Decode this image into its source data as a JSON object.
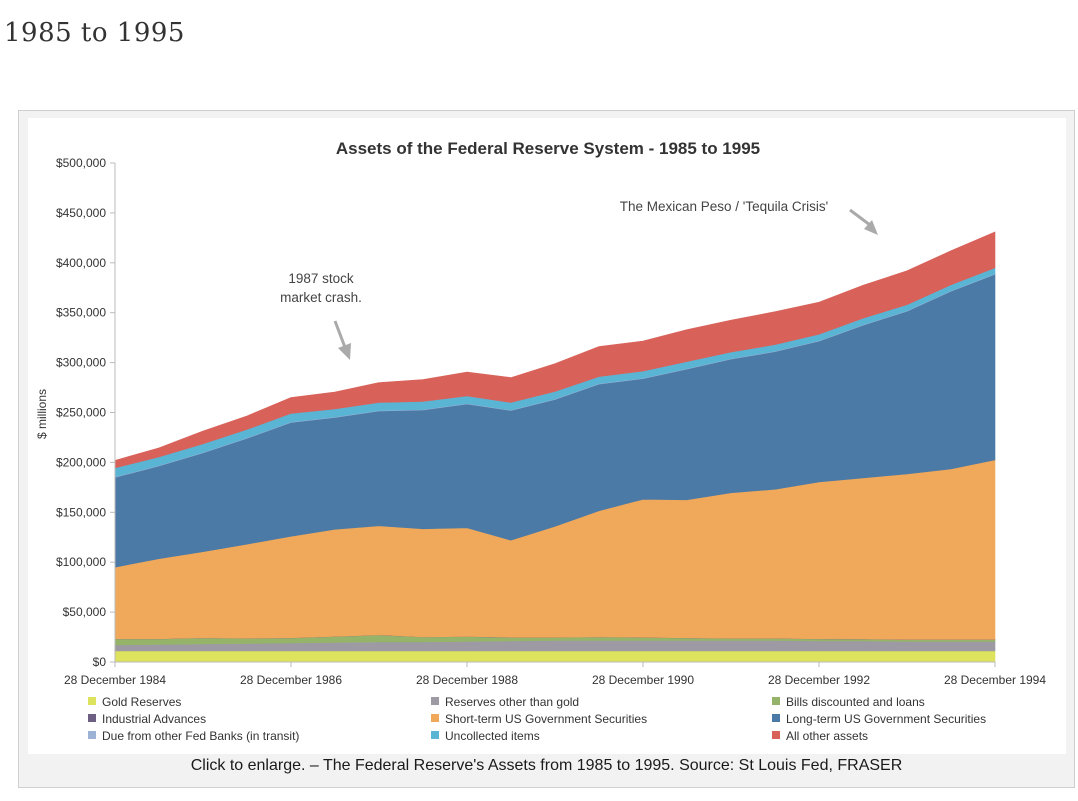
{
  "page": {
    "heading": "1985 to 1995",
    "caption": "Click to enlarge. – The Federal Reserve's Assets from 1985 to 1995. Source: St Louis Fed, FRASER"
  },
  "chart_data": {
    "type": "area",
    "stacked": true,
    "title": "Assets of the Federal Reserve System - 1985 to 1995",
    "ylabel": "$ millions",
    "xlabel": "",
    "ylim": [
      0,
      500000
    ],
    "y_ticks": [
      0,
      50000,
      100000,
      150000,
      200000,
      250000,
      300000,
      350000,
      400000,
      450000,
      500000
    ],
    "y_tick_labels": [
      "$0",
      "$50,000",
      "$100,000",
      "$150,000",
      "$200,000",
      "$250,000",
      "$300,000",
      "$350,000",
      "$400,000",
      "$450,000",
      "$500,000"
    ],
    "x_tick_labels": [
      "28 December 1984",
      "28 December 1986",
      "28 December 1988",
      "28 December 1990",
      "28 December 1992",
      "28 December 1994"
    ],
    "x_dates": [
      "1984-12-28",
      "1985-06-28",
      "1985-12-28",
      "1986-06-28",
      "1986-12-28",
      "1987-06-28",
      "1987-12-28",
      "1988-06-28",
      "1988-12-28",
      "1989-06-28",
      "1989-12-28",
      "1990-06-28",
      "1990-12-28",
      "1991-06-28",
      "1991-12-28",
      "1992-06-28",
      "1992-12-28",
      "1993-06-28",
      "1993-12-28",
      "1994-06-28",
      "1994-12-28"
    ],
    "legend_position": "bottom",
    "grid": false,
    "series": [
      {
        "name": "Gold Reserves",
        "color": "#dde35c",
        "values": [
          11000,
          11000,
          11000,
          11000,
          11000,
          11000,
          11000,
          11000,
          11000,
          11000,
          11000,
          11000,
          11000,
          11000,
          11000,
          11000,
          11000,
          11000,
          11000,
          11000,
          11000
        ]
      },
      {
        "name": "Reserves other than gold",
        "color": "#9d9aa3",
        "values": [
          6000,
          6500,
          7000,
          7500,
          8000,
          8500,
          9000,
          9000,
          9500,
          10000,
          10500,
          10500,
          10500,
          10500,
          10500,
          10500,
          10000,
          10000,
          9500,
          9500,
          9500
        ]
      },
      {
        "name": "Bills discounted and loans",
        "color": "#95b46a",
        "values": [
          6000,
          5500,
          6000,
          5000,
          5000,
          6000,
          7000,
          5000,
          5000,
          3500,
          3000,
          3500,
          3000,
          2500,
          2000,
          2000,
          2000,
          1800,
          1800,
          1800,
          1800
        ]
      },
      {
        "name": "Industrial Advances",
        "color": "#6d5e84",
        "values": [
          200,
          200,
          200,
          200,
          200,
          200,
          200,
          200,
          200,
          200,
          200,
          200,
          200,
          200,
          200,
          200,
          200,
          200,
          200,
          200,
          200
        ]
      },
      {
        "name": "Short-term US Government Securities",
        "color": "#f0a85a",
        "values": [
          71800,
          80300,
          86300,
          94300,
          101800,
          107300,
          109300,
          108300,
          108800,
          97300,
          111300,
          126300,
          138300,
          138300,
          145800,
          149300,
          157300,
          161500,
          166000,
          171000,
          180000
        ]
      },
      {
        "name": "Long-term US Government Securities",
        "color": "#4b7aa6",
        "values": [
          90000,
          93000,
          99000,
          106000,
          114000,
          112000,
          115000,
          119000,
          124000,
          130000,
          127000,
          127000,
          121000,
          131000,
          134000,
          138000,
          141000,
          153000,
          163000,
          178000,
          186000
        ]
      },
      {
        "name": "Due from other Fed Banks (in transit)",
        "color": "#9db3d6",
        "values": [
          500,
          500,
          500,
          500,
          500,
          500,
          500,
          500,
          500,
          500,
          500,
          500,
          500,
          500,
          500,
          500,
          500,
          500,
          500,
          500,
          500
        ]
      },
      {
        "name": "Uncollected items",
        "color": "#5ab4d4",
        "values": [
          9000,
          8500,
          8500,
          8500,
          8500,
          8000,
          8000,
          8000,
          7500,
          7500,
          7500,
          7000,
          7000,
          7000,
          6500,
          6500,
          6500,
          6500,
          6000,
          6000,
          6000
        ]
      },
      {
        "name": "All other assets",
        "color": "#d8625a",
        "values": [
          7500,
          9000,
          13000,
          13500,
          16000,
          17000,
          20000,
          22000,
          24000,
          25000,
          28000,
          30000,
          30000,
          32000,
          32000,
          33000,
          32000,
          33000,
          34000,
          34000,
          36000
        ]
      }
    ],
    "annotations": [
      {
        "text_lines": [
          "1987 stock",
          "market crash."
        ]
      },
      {
        "text_lines": [
          "The Mexican Peso / 'Tequila Crisis'"
        ]
      }
    ]
  }
}
